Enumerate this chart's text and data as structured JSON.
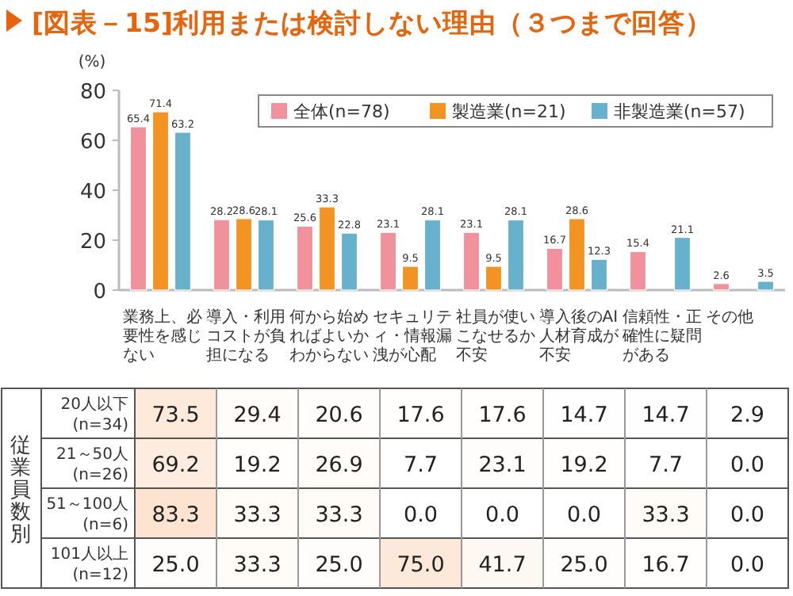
{
  "chart_data": [
    {
      "type": "bar",
      "title": "[図表－15]利用または検討しない理由（３つまで回答）",
      "ylabel": "(%)",
      "categories": [
        "業務上、必要性を感じない",
        "導入・利用コストが負担になる",
        "何から始めればよいかわからない",
        "セキュリティ・情報漏洩が心配",
        "社員が使いこなせるか不安",
        "導入後のAI人材育成が不安",
        "信頼性・正確性に疑問がある",
        "その他"
      ],
      "series": [
        {
          "name": "全体(n=78)",
          "color": "#f0919c",
          "values": [
            65.4,
            28.2,
            25.6,
            23.1,
            23.1,
            16.7,
            15.4,
            2.6
          ]
        },
        {
          "name": "製造業(n=21)",
          "color": "#f39422",
          "values": [
            71.4,
            28.6,
            33.3,
            9.5,
            9.5,
            28.6,
            null,
            null
          ]
        },
        {
          "name": "非製造業(n=57)",
          "color": "#67b1cd",
          "values": [
            63.2,
            28.1,
            22.8,
            28.1,
            28.1,
            12.3,
            21.1,
            3.5
          ]
        }
      ],
      "ylim": [
        0,
        80
      ],
      "yticks": [
        0,
        20,
        40,
        60,
        80
      ],
      "data_labels": true,
      "legend": "top right",
      "grid": false
    },
    {
      "type": "heatmap",
      "ylabel": "従業員数別",
      "tick_labels": "y",
      "categories": [
        null,
        null,
        null,
        null,
        null,
        null,
        null,
        null
      ],
      "cell_labels": [
        [
          "73.5",
          "29.4",
          "20.6",
          "17.6",
          "17.6",
          "14.7",
          "14.7",
          "2.9"
        ],
        [
          "69.2",
          "19.2",
          "26.9",
          "7.7",
          "23.1",
          "19.2",
          "7.7",
          "0.0"
        ],
        [
          "83.3",
          "33.3",
          "33.3",
          "0.0",
          "0.0",
          "0.0",
          "33.3",
          "0.0"
        ],
        [
          "25.0",
          "33.3",
          "25.0",
          "75.0",
          "41.7",
          "25.0",
          "16.7",
          "0.0"
        ]
      ],
      "y_categories": [
        "20人以下\n(n=34)",
        "21～50人\n(n=26)",
        "51～100人\n(n=6)",
        "101人以上\n(n=12)"
      ],
      "cells": [
        [
          73.5,
          29.4,
          20.6,
          17.6,
          17.6,
          14.7,
          14.7,
          2.9
        ],
        [
          69.2,
          19.2,
          26.9,
          7.7,
          23.1,
          19.2,
          7.7,
          0.0
        ],
        [
          83.3,
          33.3,
          33.3,
          0.0,
          0.0,
          0.0,
          33.3,
          0.0
        ],
        [
          25.0,
          33.3,
          25.0,
          75.0,
          41.7,
          25.0,
          16.7,
          0.0
        ]
      ]
    }
  ]
}
